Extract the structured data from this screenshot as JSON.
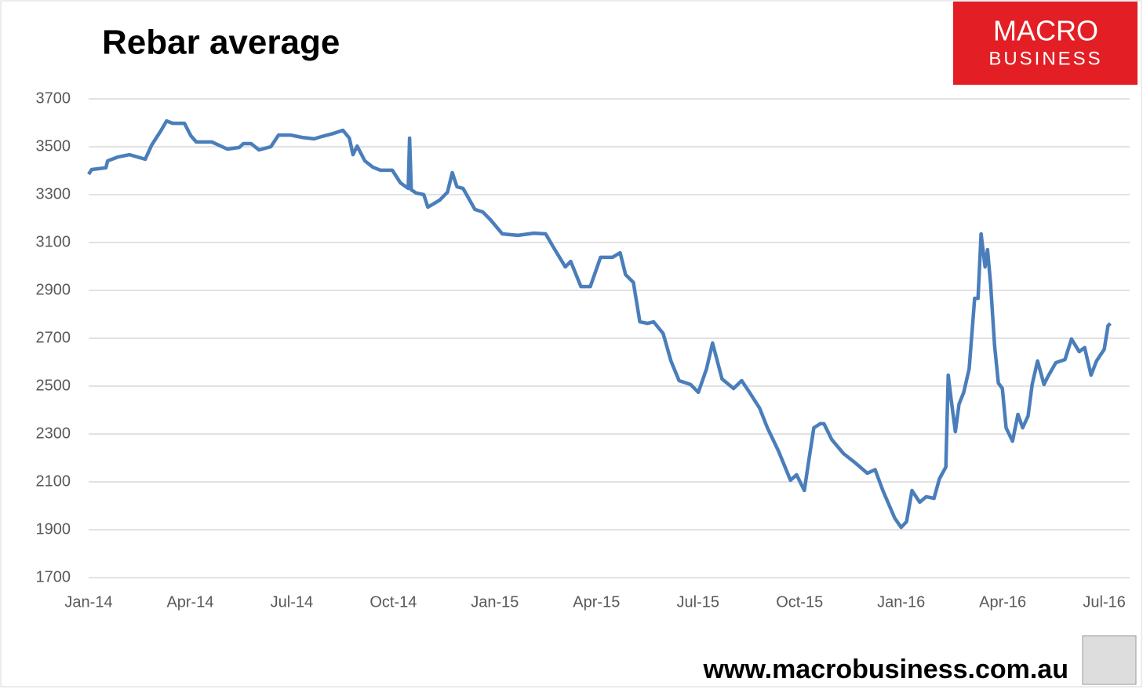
{
  "chart_data": {
    "type": "line",
    "title": "Rebar average",
    "logo": {
      "line1": "MACRO",
      "line2": "BUSINESS"
    },
    "footer": "www.macrobusiness.com.au",
    "xlim": [
      0,
      30.75
    ],
    "ylim": [
      1700,
      3700
    ],
    "xticks": [
      {
        "value": 0,
        "label": "Jan-14"
      },
      {
        "value": 3,
        "label": "Apr-14"
      },
      {
        "value": 6,
        "label": "Jul-14"
      },
      {
        "value": 9,
        "label": "Oct-14"
      },
      {
        "value": 12,
        "label": "Jan-15"
      },
      {
        "value": 15,
        "label": "Apr-15"
      },
      {
        "value": 18,
        "label": "Jul-15"
      },
      {
        "value": 21,
        "label": "Oct-15"
      },
      {
        "value": 24,
        "label": "Jan-16"
      },
      {
        "value": 27,
        "label": "Apr-16"
      },
      {
        "value": 30,
        "label": "Jul-16"
      }
    ],
    "yticks": [
      1700,
      1900,
      2100,
      2300,
      2500,
      2700,
      2900,
      3100,
      3300,
      3500,
      3700
    ],
    "grid": true,
    "x": [
      0,
      0.09,
      0.51,
      0.56,
      0.86,
      1.21,
      1.67,
      1.86,
      2.13,
      2.3,
      2.48,
      2.83,
      3.02,
      3.18,
      3.64,
      4.1,
      4.45,
      4.57,
      4.8,
      5.03,
      5.38,
      5.61,
      5.96,
      6.31,
      6.66,
      6.89,
      7.24,
      7.51,
      7.7,
      7.81,
      7.93,
      8.16,
      8.39,
      8.62,
      8.97,
      9.21,
      9.44,
      9.48,
      9.53,
      9.67,
      9.9,
      10.02,
      10.37,
      10.6,
      10.74,
      10.88,
      11.06,
      11.41,
      11.64,
      11.87,
      12.22,
      12.68,
      13.15,
      13.5,
      13.73,
      14.08,
      14.24,
      14.54,
      14.82,
      15.12,
      15.47,
      15.7,
      15.86,
      16.09,
      16.28,
      16.51,
      16.69,
      16.97,
      17.2,
      17.44,
      17.78,
      18.01,
      18.25,
      18.43,
      18.71,
      19.05,
      19.29,
      19.52,
      19.82,
      20.05,
      20.38,
      20.73,
      20.91,
      21.14,
      21.26,
      21.42,
      21.61,
      21.72,
      21.95,
      22.3,
      22.65,
      23.0,
      23.23,
      23.46,
      23.81,
      24.0,
      24.16,
      24.32,
      24.55,
      24.74,
      24.97,
      25.13,
      25.32,
      25.39,
      25.48,
      25.6,
      25.71,
      25.85,
      26.01,
      26.17,
      26.27,
      26.36,
      26.48,
      26.55,
      26.64,
      26.76,
      26.87,
      26.99,
      27.1,
      27.29,
      27.45,
      27.59,
      27.75,
      27.87,
      28.03,
      28.22,
      28.33,
      28.57,
      28.84,
      29.03,
      29.26,
      29.42,
      29.61,
      29.77,
      30.0,
      30.11,
      30.18
    ],
    "series": [
      {
        "name": "Rebar average",
        "color": "#4a7ebb",
        "values": [
          3385,
          3405,
          3412,
          3441,
          3457,
          3467,
          3448,
          3507,
          3566,
          3608,
          3598,
          3598,
          3546,
          3520,
          3520,
          3490,
          3497,
          3513,
          3513,
          3487,
          3500,
          3549,
          3549,
          3539,
          3533,
          3543,
          3556,
          3569,
          3536,
          3467,
          3503,
          3441,
          3415,
          3402,
          3402,
          3349,
          3326,
          3536,
          3320,
          3307,
          3300,
          3248,
          3277,
          3310,
          3392,
          3333,
          3326,
          3238,
          3228,
          3195,
          3136,
          3130,
          3139,
          3136,
          3080,
          2998,
          3021,
          2916,
          2916,
          3038,
          3038,
          3057,
          2966,
          2933,
          2769,
          2762,
          2769,
          2720,
          2605,
          2523,
          2507,
          2474,
          2572,
          2680,
          2530,
          2490,
          2523,
          2474,
          2408,
          2326,
          2228,
          2107,
          2130,
          2064,
          2179,
          2326,
          2343,
          2343,
          2277,
          2218,
          2179,
          2136,
          2151,
          2064,
          1949,
          1910,
          1934,
          2064,
          2015,
          2038,
          2031,
          2113,
          2162,
          2546,
          2441,
          2310,
          2425,
          2474,
          2572,
          2867,
          2867,
          3136,
          2998,
          3070,
          2933,
          2670,
          2513,
          2490,
          2326,
          2270,
          2382,
          2326,
          2375,
          2507,
          2605,
          2507,
          2539,
          2598,
          2611,
          2697,
          2644,
          2661,
          2546,
          2605,
          2654,
          2752,
          2762
        ]
      }
    ]
  }
}
